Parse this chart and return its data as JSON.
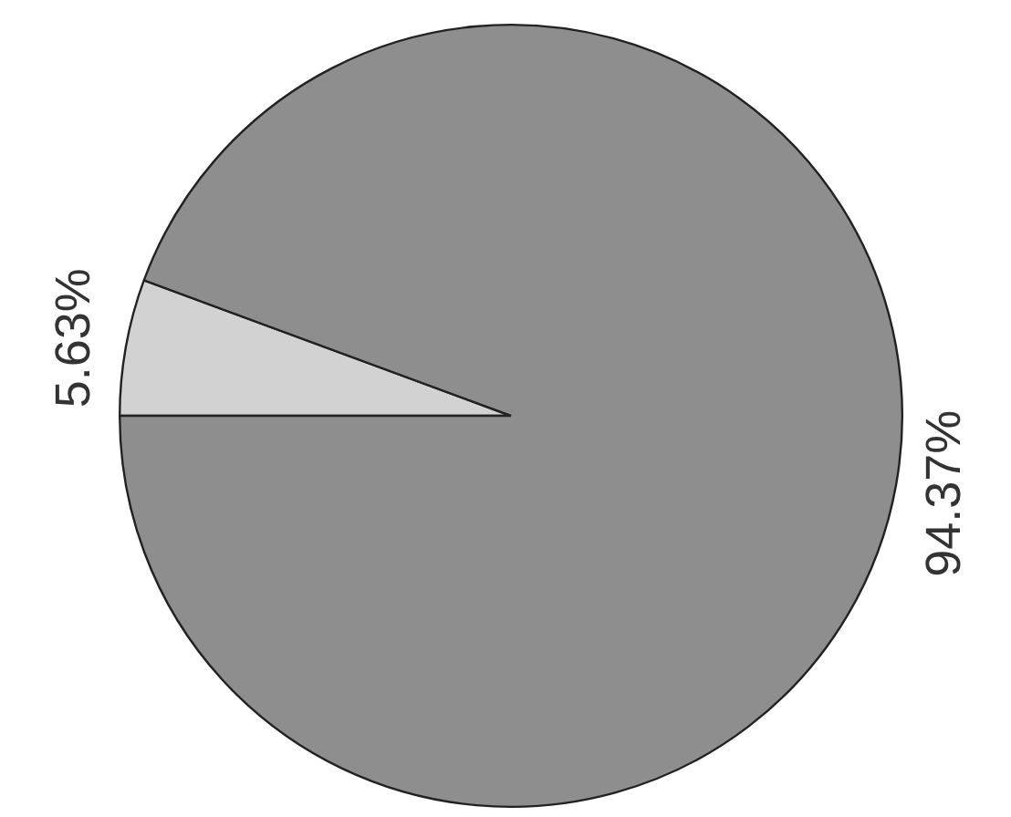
{
  "chart_data": {
    "type": "pie",
    "categories": [
      null,
      null
    ],
    "values": [
      5.63,
      94.37
    ],
    "colors": [
      "#d2d2d2",
      "#8e8e8e"
    ],
    "value_labels": [
      "5.63%",
      "94.37%"
    ],
    "legend": false
  }
}
